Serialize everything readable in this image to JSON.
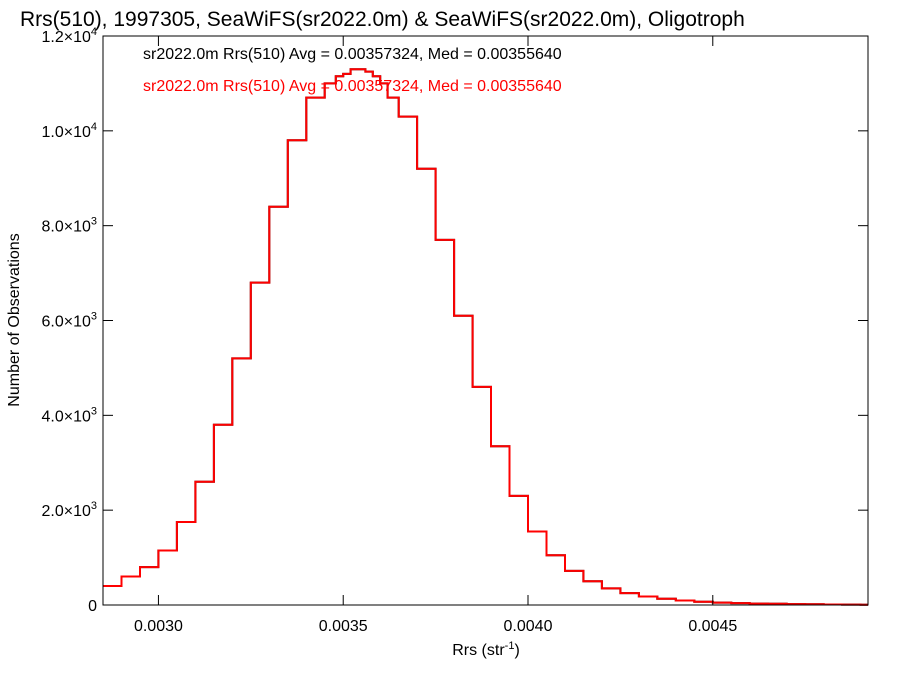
{
  "chart_data": {
    "type": "line",
    "title": "Rrs(510), 1997305, SeaWiFS(sr2022.0m) & SeaWiFS(sr2022.0m), Oligotroph",
    "xlabel": "Rrs (str",
    "xlabel_sup": "-1",
    "xlabel_close": ")",
    "ylabel": "Number of Observations",
    "xlim": [
      0.00285,
      0.00492
    ],
    "ylim": [
      0,
      12000
    ],
    "x_ticks": [
      {
        "value": 0.003,
        "label": "0.0030"
      },
      {
        "value": 0.0035,
        "label": "0.0035"
      },
      {
        "value": 0.004,
        "label": "0.0040"
      },
      {
        "value": 0.0045,
        "label": "0.0045"
      }
    ],
    "y_ticks": [
      {
        "value": 0,
        "mant": "0",
        "exp": ""
      },
      {
        "value": 2000,
        "mant": "2.0×10",
        "exp": "3"
      },
      {
        "value": 4000,
        "mant": "4.0×10",
        "exp": "3"
      },
      {
        "value": 6000,
        "mant": "6.0×10",
        "exp": "3"
      },
      {
        "value": 8000,
        "mant": "8.0×10",
        "exp": "3"
      },
      {
        "value": 10000,
        "mant": "1.0×10",
        "exp": "4"
      },
      {
        "value": 12000,
        "mant": "1.2×10",
        "exp": "4"
      }
    ],
    "annotations": [
      {
        "text": "sr2022.0m Rrs(510) Avg = 0.00357324, Med = 0.00355640",
        "color": "#000000"
      },
      {
        "text": "sr2022.0m Rrs(510) Avg = 0.00357324, Med = 0.00355640",
        "color": "#ff0000"
      }
    ],
    "series": [
      {
        "color": "#000000",
        "x": [
          0.00285,
          0.0029,
          0.00295,
          0.003,
          0.00305,
          0.0031,
          0.00315,
          0.0032,
          0.00325,
          0.0033,
          0.00335,
          0.0034,
          0.00345,
          0.00348,
          0.0035,
          0.00352,
          0.00354,
          0.00356,
          0.00358,
          0.0036,
          0.00362,
          0.00365,
          0.0037,
          0.00375,
          0.0038,
          0.00385,
          0.0039,
          0.00395,
          0.004,
          0.00405,
          0.0041,
          0.00415,
          0.0042,
          0.00425,
          0.0043,
          0.00435,
          0.0044,
          0.00445,
          0.0045,
          0.00455,
          0.0046,
          0.00465,
          0.0047,
          0.00475,
          0.0048,
          0.00485,
          0.0049,
          0.00492
        ],
        "values": [
          400,
          600,
          800,
          1150,
          1750,
          2600,
          3800,
          5200,
          6800,
          8400,
          9800,
          10700,
          11000,
          11150,
          11200,
          11300,
          11300,
          11250,
          11150,
          11000,
          10700,
          10300,
          9200,
          7700,
          6100,
          4600,
          3350,
          2300,
          1550,
          1050,
          720,
          500,
          350,
          250,
          180,
          130,
          95,
          70,
          50,
          40,
          30,
          25,
          20,
          15,
          10,
          8,
          5,
          5
        ]
      },
      {
        "color": "#ff0000",
        "x": [
          0.00285,
          0.0029,
          0.00295,
          0.003,
          0.00305,
          0.0031,
          0.00315,
          0.0032,
          0.00325,
          0.0033,
          0.00335,
          0.0034,
          0.00345,
          0.00348,
          0.0035,
          0.00352,
          0.00354,
          0.00356,
          0.00358,
          0.0036,
          0.00362,
          0.00365,
          0.0037,
          0.00375,
          0.0038,
          0.00385,
          0.0039,
          0.00395,
          0.004,
          0.00405,
          0.0041,
          0.00415,
          0.0042,
          0.00425,
          0.0043,
          0.00435,
          0.0044,
          0.00445,
          0.0045,
          0.00455,
          0.0046,
          0.00465,
          0.0047,
          0.00475,
          0.0048,
          0.00485,
          0.0049,
          0.00492
        ],
        "values": [
          400,
          600,
          800,
          1150,
          1750,
          2600,
          3800,
          5200,
          6800,
          8400,
          9800,
          10700,
          11000,
          11150,
          11200,
          11300,
          11300,
          11250,
          11150,
          11000,
          10700,
          10300,
          9200,
          7700,
          6100,
          4600,
          3350,
          2300,
          1550,
          1050,
          720,
          500,
          350,
          250,
          180,
          130,
          95,
          70,
          50,
          40,
          30,
          25,
          20,
          15,
          10,
          8,
          5,
          5
        ]
      }
    ]
  }
}
